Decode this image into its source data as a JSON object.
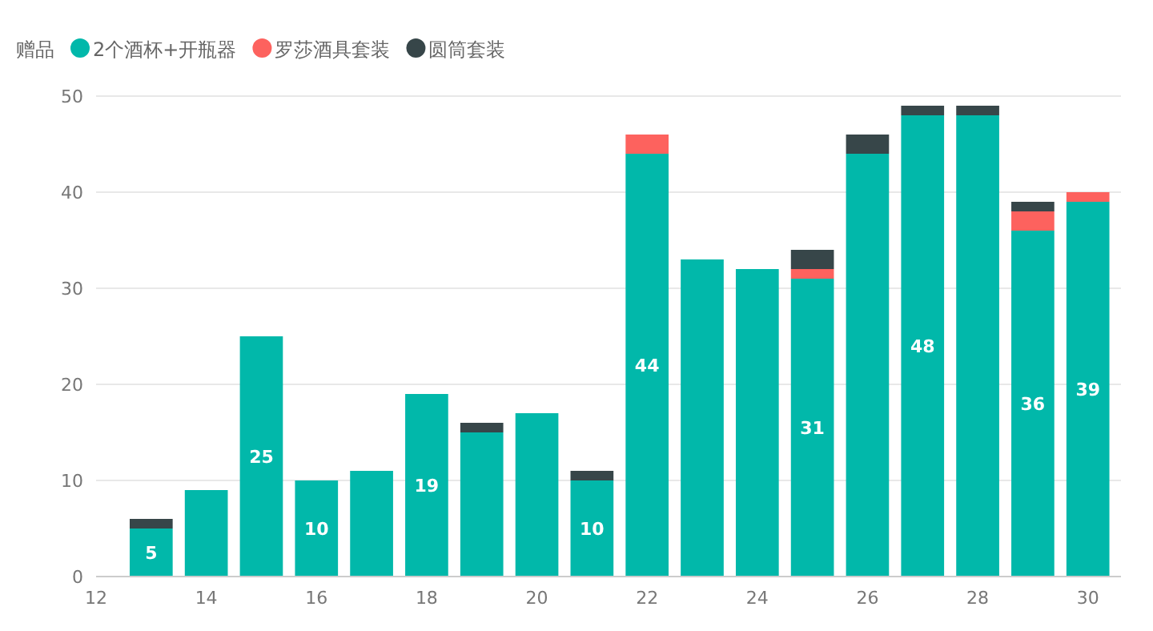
{
  "chart_data": {
    "type": "bar",
    "stacked": true,
    "legend_title": "赠品",
    "legend": "top left",
    "grid": "y",
    "x": [
      13,
      14,
      15,
      16,
      17,
      18,
      19,
      20,
      21,
      22,
      23,
      24,
      25,
      26,
      27,
      28,
      29,
      30
    ],
    "xlim": [
      12,
      30.6
    ],
    "xticks": [
      12,
      14,
      16,
      18,
      20,
      22,
      24,
      26,
      28,
      30
    ],
    "ylim": [
      0,
      50
    ],
    "yticks": [
      0,
      10,
      20,
      30,
      40,
      50
    ],
    "series": [
      {
        "name": "2个酒杯+开瓶器",
        "color": "#01b8aa",
        "values": [
          5,
          9,
          25,
          10,
          11,
          19,
          15,
          17,
          10,
          44,
          33,
          32,
          31,
          44,
          48,
          48,
          36,
          39
        ],
        "value_labels": [
          "5",
          null,
          "25",
          "10",
          null,
          "19",
          null,
          null,
          "10",
          "44",
          null,
          null,
          "31",
          null,
          "48",
          null,
          "36",
          "39"
        ]
      },
      {
        "name": "罗莎酒具套装",
        "color": "#fd625e",
        "values": [
          null,
          null,
          null,
          null,
          null,
          null,
          null,
          null,
          null,
          2,
          null,
          null,
          1,
          null,
          null,
          null,
          2,
          1
        ]
      },
      {
        "name": "圆筒套装",
        "color": "#374649",
        "values": [
          1,
          null,
          null,
          null,
          null,
          null,
          1,
          null,
          1,
          null,
          null,
          null,
          2,
          2,
          1,
          1,
          1,
          null
        ]
      }
    ]
  }
}
